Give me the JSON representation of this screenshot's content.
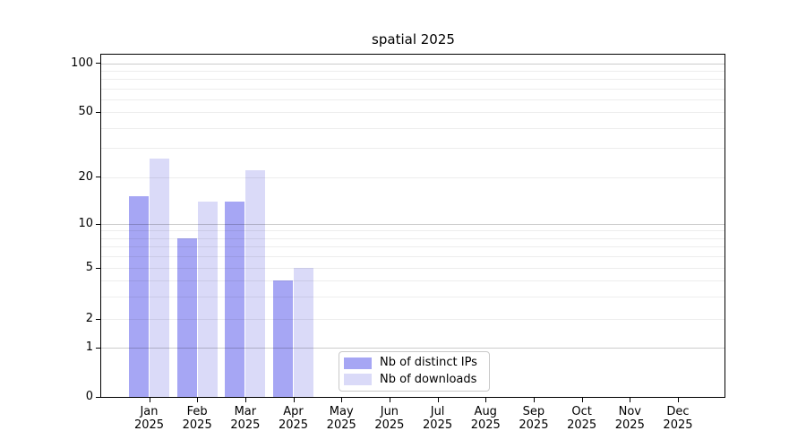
{
  "chart_data": {
    "type": "bar",
    "title": "spatial 2025",
    "categories": [
      "Jan 2025",
      "Feb 2025",
      "Mar 2025",
      "Apr 2025",
      "May 2025",
      "Jun 2025",
      "Jul 2025",
      "Aug 2025",
      "Sep 2025",
      "Oct 2025",
      "Nov 2025",
      "Dec 2025"
    ],
    "x_axis": {
      "months": [
        "Jan",
        "Feb",
        "Mar",
        "Apr",
        "May",
        "Jun",
        "Jul",
        "Aug",
        "Sep",
        "Oct",
        "Nov",
        "Dec"
      ],
      "year": "2025"
    },
    "series": [
      {
        "name": "Nb of distinct IPs",
        "color": "#a6a6f4",
        "values": [
          15,
          8,
          14,
          4,
          null,
          null,
          null,
          null,
          null,
          null,
          null,
          null
        ]
      },
      {
        "name": "Nb of downloads",
        "color": "#dadaf8",
        "values": [
          26,
          14,
          22,
          5,
          null,
          null,
          null,
          null,
          null,
          null,
          null,
          null
        ]
      }
    ],
    "y_axis": {
      "scale": "symlog",
      "tick_labels": [
        0,
        1,
        2,
        5,
        10,
        20,
        50,
        100
      ],
      "major_gridlines": [
        1,
        10,
        100
      ],
      "minor_gridlines": [
        2,
        3,
        4,
        6,
        7,
        8,
        9,
        5,
        20,
        30,
        40,
        50,
        60,
        70,
        80,
        90
      ],
      "min": 0,
      "max_tick": 100
    },
    "legend": {
      "position": "lower center"
    },
    "grid": true,
    "grid_above_bars": true
  }
}
